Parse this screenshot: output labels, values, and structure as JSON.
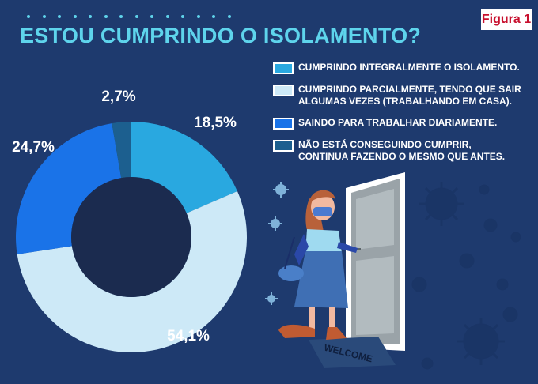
{
  "header": {
    "title": "ESTOU CUMPRINDO O ISOLAMENTO?",
    "figure_label": "Figura 1"
  },
  "colors": {
    "background": "#1e3a6e",
    "title": "#5ed4ec",
    "center": "#1b2b4f"
  },
  "legend": [
    {
      "label": "CUMPRINDO INTEGRALMENTE O ISOLAMENTO.",
      "color": "#29a8e0"
    },
    {
      "label": "CUMPRINDO PARCIALMENTE, TENDO QUE SAIR\nALGUMAS VEZES (TRABALHANDO EM CASA).",
      "color": "#cde9f7"
    },
    {
      "label": "SAINDO PARA TRABALHAR DIARIAMENTE.",
      "color": "#1a73e8"
    },
    {
      "label": "NÃO ESTÁ CONSEGUINDO CUMPRIR,\nCONTINUA FAZENDO O MESMO QUE ANTES.",
      "color": "#1c5f8f"
    }
  ],
  "illustration": {
    "mat_text": "WELCOME"
  },
  "chart_data": {
    "type": "pie",
    "title": "ESTOU CUMPRINDO O ISOLAMENTO?",
    "categories": [
      "CUMPRINDO INTEGRALMENTE O ISOLAMENTO.",
      "CUMPRINDO PARCIALMENTE, TENDO QUE SAIR ALGUMAS VEZES (TRABALHANDO EM CASA).",
      "SAINDO PARA TRABALHAR DIARIAMENTE.",
      "NÃO ESTÁ CONSEGUINDO CUMPRIR, CONTINUA FAZENDO O MESMO QUE ANTES."
    ],
    "values": [
      18.5,
      54.1,
      24.7,
      2.7
    ],
    "labels": [
      "18,5%",
      "54,1%",
      "24,7%",
      "2,7%"
    ],
    "colors": [
      "#29a8e0",
      "#cde9f7",
      "#1a73e8",
      "#1c5f8f"
    ],
    "donut": true,
    "legend_position": "top-right"
  }
}
